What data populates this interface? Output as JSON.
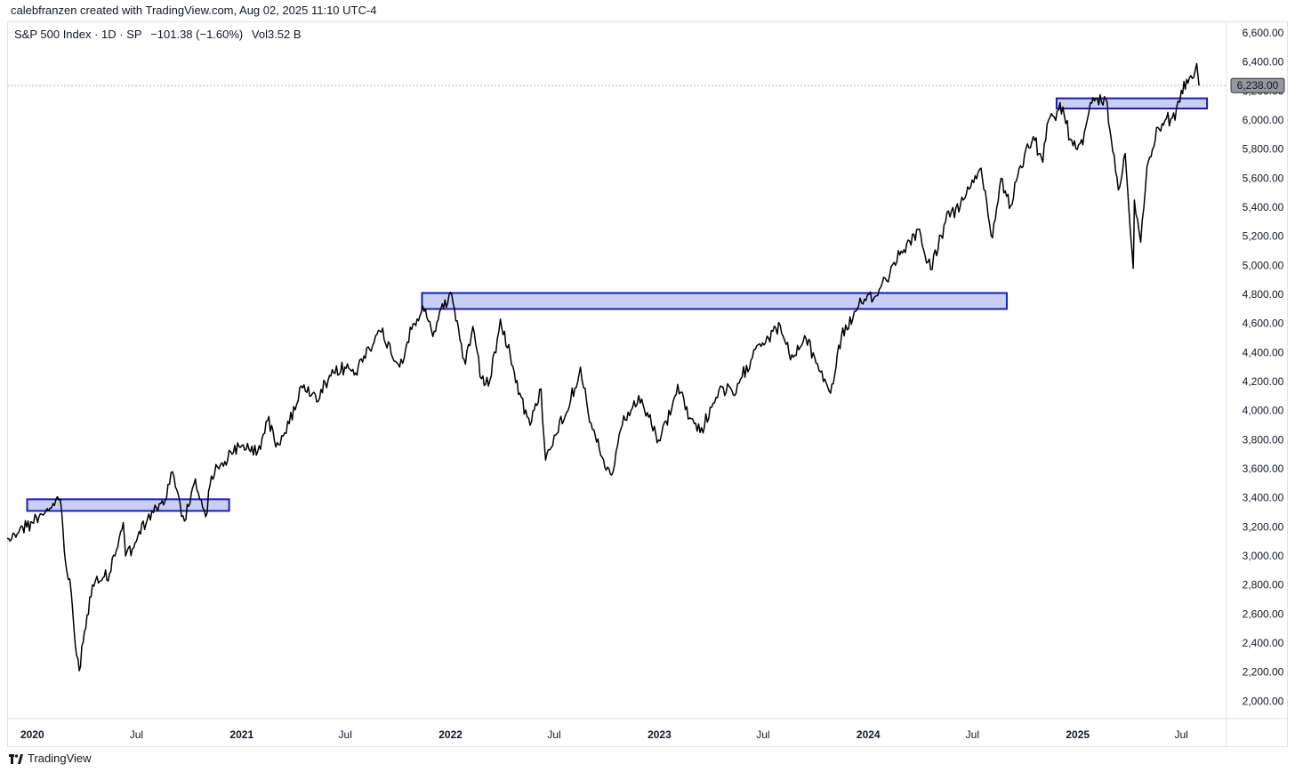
{
  "attribution": "calebfranzen created with TradingView.com, Aug 02, 2025 11:10 UTC-4",
  "legend": {
    "symbol": "S&P 500 Index · 1D · SP",
    "change": "−101.38 (−1.60%)",
    "volume": "Vol3.52 B"
  },
  "footer": {
    "brand": "TradingView",
    "logo_icon": "tradingview-logo-icon"
  },
  "colors": {
    "line": "#000000",
    "zone_fill": "#c9cef5",
    "zone_stroke": "#1a1fad",
    "badge": "#9598a1",
    "dotted": "#b2b5be"
  },
  "chart_data": {
    "type": "line",
    "xlim": [
      "2019-11-18",
      "2025-09-18"
    ],
    "ylim": [
      1880,
      6680
    ],
    "y_ticks": [
      2000,
      2200,
      2400,
      2600,
      2800,
      3000,
      3200,
      3400,
      3600,
      3800,
      4000,
      4200,
      4400,
      4600,
      4800,
      5000,
      5200,
      5400,
      5600,
      5800,
      6000,
      6200,
      6400,
      6600
    ],
    "y_tick_labels": [
      "2,000.00",
      "2,200.00",
      "2,400.00",
      "2,600.00",
      "2,800.00",
      "3,000.00",
      "3,200.00",
      "3,400.00",
      "3,600.00",
      "3,800.00",
      "4,000.00",
      "4,200.00",
      "4,400.00",
      "4,600.00",
      "4,800.00",
      "5,000.00",
      "5,200.00",
      "5,400.00",
      "5,600.00",
      "5,800.00",
      "6,000.00",
      "6,200.00",
      "6,400.00",
      "6,600.00"
    ],
    "x_ticks": [
      {
        "label": "2020",
        "date": "2020-01-01",
        "bold": true
      },
      {
        "label": "Jul",
        "date": "2020-07-01",
        "bold": false
      },
      {
        "label": "2021",
        "date": "2021-01-01",
        "bold": true
      },
      {
        "label": "Jul",
        "date": "2021-07-01",
        "bold": false
      },
      {
        "label": "2022",
        "date": "2022-01-01",
        "bold": true
      },
      {
        "label": "Jul",
        "date": "2022-07-01",
        "bold": false
      },
      {
        "label": "2023",
        "date": "2023-01-01",
        "bold": true
      },
      {
        "label": "Jul",
        "date": "2023-07-01",
        "bold": false
      },
      {
        "label": "2024",
        "date": "2024-01-01",
        "bold": true
      },
      {
        "label": "Jul",
        "date": "2024-07-01",
        "bold": false
      },
      {
        "label": "2025",
        "date": "2025-01-01",
        "bold": true
      },
      {
        "label": "Jul",
        "date": "2025-07-01",
        "bold": false
      }
    ],
    "last_price": 6238,
    "last_price_label": "6,238.00",
    "series": [
      {
        "x": [
          "2019-11-18",
          "2019-12-01",
          "2019-12-15",
          "2020-01-01",
          "2020-01-15",
          "2020-02-01",
          "2020-02-19",
          "2020-02-28",
          "2020-03-09",
          "2020-03-16",
          "2020-03-23",
          "2020-04-01",
          "2020-04-15",
          "2020-05-01",
          "2020-05-15",
          "2020-06-08",
          "2020-06-12",
          "2020-07-01",
          "2020-07-20",
          "2020-08-05",
          "2020-08-20",
          "2020-09-02",
          "2020-09-23",
          "2020-10-12",
          "2020-10-30",
          "2020-11-09",
          "2020-11-25",
          "2020-12-15",
          "2021-01-01",
          "2021-01-29",
          "2021-02-15",
          "2021-03-04",
          "2021-03-25",
          "2021-04-15",
          "2021-05-12",
          "2021-06-01",
          "2021-06-30",
          "2021-07-19",
          "2021-08-10",
          "2021-09-02",
          "2021-10-04",
          "2021-10-25",
          "2021-11-18",
          "2021-12-01",
          "2021-12-15",
          "2022-01-03",
          "2022-01-27",
          "2022-02-09",
          "2022-02-24",
          "2022-03-08",
          "2022-03-29",
          "2022-04-15",
          "2022-05-02",
          "2022-05-20",
          "2022-06-08",
          "2022-06-16",
          "2022-07-01",
          "2022-07-20",
          "2022-08-16",
          "2022-09-01",
          "2022-09-30",
          "2022-10-12",
          "2022-10-28",
          "2022-11-15",
          "2022-12-01",
          "2022-12-28",
          "2023-01-20",
          "2023-02-02",
          "2023-02-23",
          "2023-03-13",
          "2023-04-15",
          "2023-05-15",
          "2023-06-15",
          "2023-07-31",
          "2023-08-18",
          "2023-09-14",
          "2023-10-27",
          "2023-11-15",
          "2023-12-15",
          "2024-01-15",
          "2024-02-15",
          "2024-03-28",
          "2024-04-19",
          "2024-05-15",
          "2024-06-15",
          "2024-07-16",
          "2024-08-05",
          "2024-08-20",
          "2024-09-06",
          "2024-09-30",
          "2024-10-18",
          "2024-11-01",
          "2024-11-11",
          "2024-12-06",
          "2024-12-19",
          "2025-01-10",
          "2025-01-23",
          "2025-02-19",
          "2025-03-13",
          "2025-03-25",
          "2025-04-08",
          "2025-04-10",
          "2025-04-21",
          "2025-05-02",
          "2025-05-21",
          "2025-06-05",
          "2025-06-20",
          "2025-07-01",
          "2025-07-15",
          "2025-07-28",
          "2025-08-01"
        ],
        "values": [
          3120,
          3150,
          3200,
          3230,
          3290,
          3330,
          3390,
          2960,
          2750,
          2390,
          2210,
          2480,
          2800,
          2830,
          2880,
          3230,
          3000,
          3100,
          3250,
          3330,
          3380,
          3580,
          3240,
          3530,
          3270,
          3550,
          3630,
          3700,
          3760,
          3720,
          3930,
          3780,
          3910,
          4170,
          4060,
          4210,
          4300,
          4260,
          4440,
          4540,
          4300,
          4560,
          4700,
          4510,
          4700,
          4800,
          4320,
          4580,
          4220,
          4170,
          4630,
          4390,
          4120,
          3900,
          4150,
          3660,
          3830,
          3960,
          4300,
          3920,
          3590,
          3580,
          3900,
          4020,
          4080,
          3780,
          3970,
          4180,
          3950,
          3850,
          4140,
          4120,
          4420,
          4590,
          4350,
          4500,
          4120,
          4510,
          4720,
          4790,
          5020,
          5250,
          4970,
          5300,
          5450,
          5670,
          5190,
          5600,
          5410,
          5760,
          5860,
          5710,
          6000,
          6090,
          5870,
          5830,
          6120,
          6144,
          5520,
          5770,
          4980,
          5450,
          5160,
          5680,
          5950,
          6010,
          6000,
          6205,
          6290,
          6389,
          6238
        ]
      }
    ],
    "zones": [
      {
        "x0": "2019-12-23",
        "x1": "2020-12-10",
        "y0": 3310,
        "y1": 3390
      },
      {
        "x0": "2021-11-12",
        "x1": "2024-08-30",
        "y0": 4700,
        "y1": 4810
      },
      {
        "x0": "2024-11-25",
        "x1": "2025-08-15",
        "y0": 6080,
        "y1": 6150
      }
    ]
  }
}
